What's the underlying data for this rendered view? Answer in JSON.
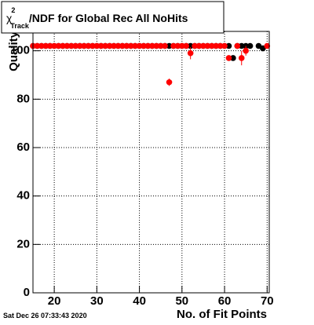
{
  "chart_data": {
    "type": "scatter",
    "title": {
      "symbol": "χ",
      "sup": "2",
      "sub": "Track",
      "text": "/NDF for Global Rec All NoHits"
    },
    "x_label": "No. of Fit Points",
    "y_label": "Quality",
    "timestamp": "Sat Dec 26 07:33:43 2020",
    "xlim": [
      15,
      70.5
    ],
    "ylim": [
      0,
      108
    ],
    "xticks": [
      20,
      30,
      40,
      50,
      60,
      70
    ],
    "yticks": [
      0,
      20,
      40,
      60,
      80,
      100
    ],
    "grid": true,
    "series": [
      {
        "color": "#000000",
        "x": [
          15,
          16,
          17,
          18,
          19,
          20,
          21,
          22,
          23,
          24,
          25,
          26,
          27,
          28,
          29,
          30,
          31,
          32,
          33,
          34,
          35,
          36,
          37,
          38,
          39,
          40,
          41,
          42,
          43,
          44,
          45,
          46,
          47,
          48,
          49,
          50,
          51,
          52,
          53,
          54,
          55,
          56,
          57,
          58,
          59,
          60,
          61,
          62,
          63,
          64,
          65,
          66,
          68,
          69
        ],
        "values": [
          102,
          102,
          102,
          102,
          102,
          102,
          102,
          102,
          102,
          102,
          102,
          102,
          102,
          102,
          102,
          102,
          102,
          102,
          102,
          102,
          102,
          102,
          102,
          102,
          102,
          102,
          102,
          102,
          102,
          102,
          102,
          102,
          102,
          102,
          102,
          102,
          102,
          102,
          102,
          102,
          102,
          102,
          102,
          102,
          102,
          102,
          102,
          97,
          102,
          102,
          102,
          102,
          102,
          101
        ]
      },
      {
        "color": "#ff0000",
        "x": [
          15,
          16,
          17,
          18,
          19,
          20,
          21,
          22,
          23,
          24,
          25,
          26,
          27,
          28,
          29,
          30,
          31,
          32,
          33,
          34,
          35,
          36,
          37,
          38,
          39,
          40,
          41,
          42,
          43,
          44,
          45,
          46,
          47,
          48,
          49,
          50,
          51,
          52,
          53,
          54,
          55,
          56,
          57,
          58,
          59,
          60,
          61,
          63,
          64,
          65,
          70
        ],
        "values": [
          102,
          102,
          102,
          102,
          102,
          102,
          102,
          102,
          102,
          102,
          102,
          102,
          102,
          102,
          102,
          102,
          102,
          102,
          102,
          102,
          102,
          102,
          102,
          102,
          102,
          102,
          102,
          102,
          102,
          102,
          102,
          102,
          87,
          102,
          102,
          102,
          102,
          99,
          102,
          102,
          102,
          102,
          102,
          102,
          102,
          102,
          97,
          102,
          97,
          100,
          102
        ],
        "errors": [
          0.6,
          0.6,
          0.6,
          0.6,
          0.6,
          0.6,
          0.6,
          0.6,
          0.6,
          0.6,
          0.6,
          0.6,
          0.6,
          0.6,
          0.6,
          0.6,
          0.6,
          0.6,
          0.6,
          0.6,
          0.6,
          0.6,
          0.6,
          0.6,
          0.6,
          0.6,
          0.6,
          0.6,
          0.6,
          0.6,
          0.6,
          0.6,
          1.5,
          0.6,
          0.6,
          0.6,
          0.6,
          2.5,
          0.6,
          0.6,
          0.6,
          0.6,
          0.6,
          0.6,
          0.6,
          0.6,
          1,
          0.6,
          3,
          2,
          0.6
        ]
      }
    ]
  }
}
